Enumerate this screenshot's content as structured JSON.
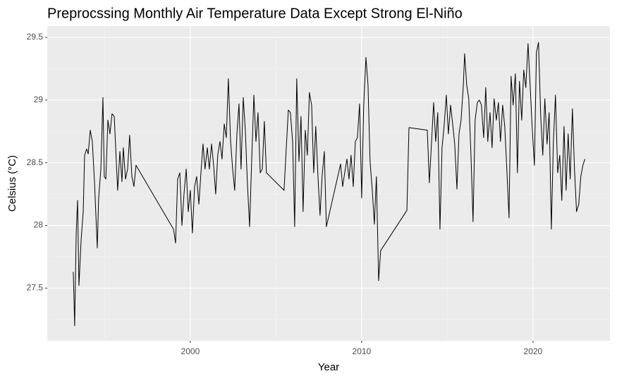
{
  "chart_data": {
    "type": "line",
    "title": "Preprocssing Monthly Air Temperature Data Except Strong El-Niño",
    "x_label": "Year",
    "y_label": "Celsius (°C)",
    "x": [
      1993.17,
      1993.25,
      1993.34,
      1993.42,
      1993.5,
      1993.63,
      1993.75,
      1993.83,
      1993.95,
      1994.04,
      1994.16,
      1994.28,
      1994.41,
      1994.57,
      1994.65,
      1994.78,
      1994.9,
      1994.98,
      1995.07,
      1995.19,
      1995.31,
      1995.43,
      1995.56,
      1995.68,
      1995.76,
      1995.89,
      1996.01,
      1996.09,
      1996.22,
      1996.34,
      1996.46,
      1996.59,
      1996.71,
      1996.83,
      1999.02,
      1999.14,
      1999.26,
      1999.39,
      1999.51,
      1999.63,
      1999.76,
      1999.88,
      2000.0,
      2000.12,
      2000.25,
      2000.37,
      2000.5,
      2000.62,
      2000.74,
      2000.86,
      2000.99,
      2001.11,
      2001.24,
      2001.36,
      2001.48,
      2001.6,
      2001.73,
      2001.85,
      2001.98,
      2002.1,
      2002.22,
      2002.35,
      2002.47,
      2002.59,
      2002.72,
      2002.84,
      2002.96,
      2003.09,
      2003.21,
      2003.33,
      2003.46,
      2003.58,
      2003.71,
      2003.83,
      2003.95,
      2004.08,
      2004.2,
      2004.32,
      2004.44,
      2005.47,
      2005.6,
      2005.72,
      2005.84,
      2005.97,
      2006.09,
      2006.21,
      2006.34,
      2006.46,
      2006.58,
      2006.71,
      2006.83,
      2006.95,
      2007.08,
      2007.2,
      2007.32,
      2007.45,
      2007.57,
      2007.69,
      2007.82,
      2007.94,
      2008.77,
      2008.89,
      2009.01,
      2009.14,
      2009.26,
      2009.38,
      2009.51,
      2009.63,
      2009.75,
      2009.88,
      2010.0,
      2010.12,
      2010.25,
      2010.37,
      2010.49,
      2010.62,
      2010.74,
      2010.86,
      2010.99,
      2011.11,
      2012.64,
      2012.76,
      2013.83,
      2013.95,
      2014.08,
      2014.2,
      2014.32,
      2014.44,
      2014.57,
      2014.69,
      2014.81,
      2014.94,
      2015.06,
      2015.19,
      2015.31,
      2015.43,
      2015.56,
      2015.68,
      2015.8,
      2015.93,
      2016.01,
      2016.13,
      2016.25,
      2016.38,
      2016.5,
      2016.62,
      2016.75,
      2016.87,
      2016.99,
      2017.12,
      2017.24,
      2017.36,
      2017.49,
      2017.61,
      2017.73,
      2017.86,
      2017.98,
      2018.1,
      2018.23,
      2018.35,
      2018.47,
      2018.6,
      2018.72,
      2018.84,
      2018.97,
      2019.09,
      2019.21,
      2019.34,
      2019.46,
      2019.58,
      2019.71,
      2019.83,
      2019.95,
      2020.08,
      2020.2,
      2020.32,
      2020.45,
      2020.57,
      2020.69,
      2020.82,
      2020.94,
      2021.07,
      2021.19,
      2021.31,
      2021.44,
      2021.56,
      2021.68,
      2021.81,
      2021.93,
      2022.05,
      2022.17,
      2022.3,
      2022.42,
      2022.54,
      2022.67,
      2022.79,
      2022.91,
      2023.03
    ],
    "values": [
      27.63,
      27.2,
      27.94,
      28.2,
      27.52,
      27.89,
      28.11,
      28.56,
      28.61,
      28.57,
      28.76,
      28.67,
      28.34,
      27.82,
      28.22,
      28.45,
      29.02,
      28.39,
      28.37,
      28.84,
      28.73,
      28.89,
      28.87,
      28.51,
      28.28,
      28.59,
      28.35,
      28.62,
      28.37,
      28.45,
      28.72,
      28.39,
      28.31,
      28.48,
      27.97,
      27.86,
      28.37,
      28.42,
      28.0,
      28.25,
      28.45,
      28.11,
      28.28,
      27.94,
      28.31,
      28.39,
      28.17,
      28.42,
      28.65,
      28.45,
      28.62,
      28.45,
      28.65,
      28.48,
      28.25,
      28.56,
      28.67,
      28.53,
      28.81,
      28.7,
      29.17,
      28.67,
      28.45,
      28.28,
      28.73,
      28.97,
      28.45,
      29.02,
      28.76,
      28.34,
      27.99,
      28.51,
      29.04,
      28.67,
      28.9,
      28.42,
      28.45,
      28.83,
      28.42,
      28.28,
      28.62,
      28.92,
      28.9,
      28.67,
      27.99,
      29.17,
      28.51,
      28.87,
      28.11,
      28.76,
      28.56,
      29.06,
      28.96,
      28.42,
      28.79,
      28.39,
      28.08,
      28.39,
      28.59,
      27.99,
      28.49,
      28.31,
      28.42,
      28.53,
      28.37,
      28.56,
      28.31,
      28.67,
      28.7,
      28.97,
      28.22,
      28.96,
      29.34,
      29.12,
      28.51,
      28.28,
      28.01,
      28.39,
      27.56,
      27.8,
      28.12,
      28.78,
      28.76,
      28.34,
      28.67,
      28.98,
      28.67,
      28.9,
      27.97,
      28.62,
      28.79,
      29.04,
      28.73,
      28.96,
      28.81,
      28.65,
      28.29,
      28.73,
      28.84,
      29.11,
      29.37,
      29.12,
      29.01,
      28.56,
      28.03,
      28.84,
      28.98,
      29.0,
      28.96,
      28.7,
      29.1,
      28.67,
      28.9,
      28.62,
      29.01,
      28.84,
      28.98,
      28.67,
      28.96,
      28.79,
      28.45,
      28.06,
      29.19,
      28.96,
      29.21,
      28.42,
      29.15,
      28.84,
      29.24,
      29.1,
      29.45,
      29.12,
      28.79,
      28.48,
      29.38,
      29.46,
      28.87,
      28.56,
      29.01,
      28.65,
      28.9,
      27.97,
      28.67,
      29.04,
      28.42,
      28.56,
      28.2,
      28.79,
      28.28,
      28.73,
      28.37,
      28.93,
      28.45,
      28.11,
      28.17,
      28.39,
      28.48,
      28.53
    ],
    "color": "#000000",
    "xlim": [
      1991.65,
      2024.49
    ],
    "xticks": [
      2000,
      2010,
      2020
    ],
    "ylim": [
      27.08,
      29.59
    ],
    "yticks": [
      27.5,
      28.0,
      28.5,
      29.0,
      29.5
    ],
    "grid": true
  }
}
